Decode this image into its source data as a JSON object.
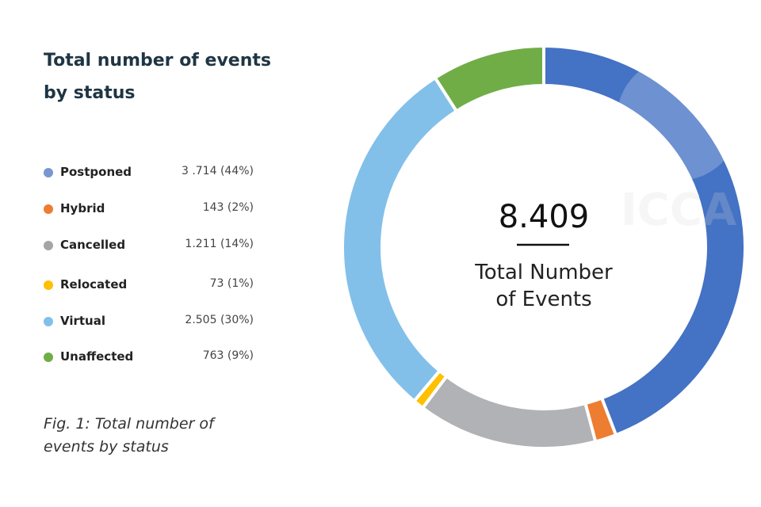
{
  "chart_data": {
    "type": "pie",
    "variant": "donut",
    "title": "Total number of events by status",
    "center_value": "8.409",
    "center_label_line1": "Total Number",
    "center_label_line2": "of Events",
    "start": "top",
    "direction": "clockwise",
    "legend_position": "left",
    "slices": [
      {
        "name": "Postponed",
        "value": 3714,
        "display": "3 .714 (44%)",
        "color": "#4472c4",
        "legend_color": "#7896d0"
      },
      {
        "name": "Hybrid",
        "value": 143,
        "display": "143 (2%)",
        "color": "#ed7d31",
        "legend_color": "#ed7d31"
      },
      {
        "name": "Cancelled",
        "value": 1211,
        "display": "1.211 (14%)",
        "color": "#b1b2b5",
        "legend_color": "#a5a5a5"
      },
      {
        "name": "Relocated",
        "value": 73,
        "display": "73 (1%)",
        "color": "#ffc000",
        "legend_color": "#ffc000"
      },
      {
        "name": "Virtual",
        "value": 2505,
        "display": "2.505 (30%)",
        "color": "#82c0ea",
        "legend_color": "#82c0ea"
      },
      {
        "name": "Unaffected",
        "value": 763,
        "display": "763 (9%)",
        "color": "#70ad47",
        "legend_color": "#70ad47"
      }
    ]
  },
  "caption_line1": "Fig. 1: Total number of",
  "caption_line2": "events by status",
  "watermark": "ICCA"
}
